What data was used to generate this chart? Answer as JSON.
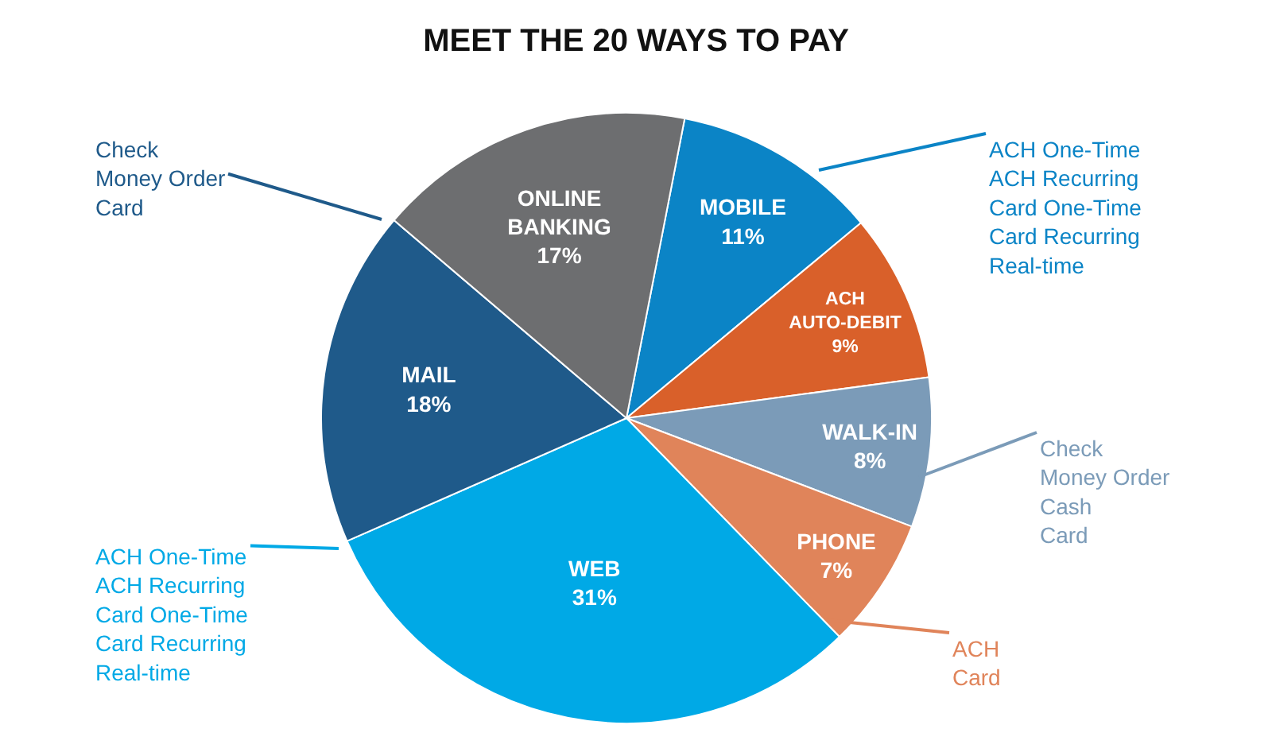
{
  "chart_data": {
    "type": "pie",
    "title": "MEET THE 20 WAYS TO PAY",
    "categories": [
      "MOBILE",
      "ACH AUTO-DEBIT",
      "WALK-IN",
      "PHONE",
      "WEB",
      "MAIL",
      "ONLINE BANKING"
    ],
    "values": [
      11,
      9,
      8,
      7,
      31,
      18,
      17
    ],
    "value_labels": [
      "11%",
      "9%",
      "8%",
      "7%",
      "31%",
      "18%",
      "17%"
    ],
    "colors": [
      "#0b84c6",
      "#d9602a",
      "#7b9bb8",
      "#e0845a",
      "#00a9e6",
      "#1f5a8a",
      "#6d6e70"
    ],
    "legend": false,
    "annotations": [
      "Check\nMoney Order\nCard",
      "ACH One-Time\nACH Recurring\nCard One-Time\nCard Recurring\nReal-time",
      "Check\nMoney Order\nCash\nCard",
      "ACH\nCard",
      "ACH One-Time\nACH Recurring\nCard One-Time\nCard Recurring\nReal-time"
    ]
  }
}
